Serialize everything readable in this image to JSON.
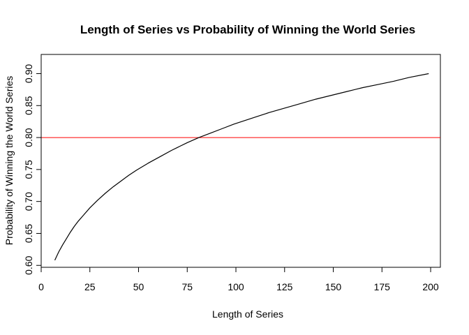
{
  "chart_data": {
    "type": "line",
    "title": "Length of Series vs Probability of Winning the World Series",
    "xlabel": "Length of Series",
    "ylabel": "Probability of Winning the World Series",
    "xlim": [
      0,
      205
    ],
    "ylim": [
      0.597,
      0.93
    ],
    "x_ticks": [
      0,
      25,
      50,
      75,
      100,
      125,
      150,
      175,
      200
    ],
    "y_ticks": [
      0.6,
      0.65,
      0.7,
      0.75,
      0.8,
      0.85,
      0.9
    ],
    "grid": false,
    "series": [
      {
        "color": "#000000",
        "x": [
          7,
          9,
          11,
          13,
          15,
          17,
          19,
          21,
          25,
          29,
          33,
          37,
          41,
          45,
          49,
          55,
          61,
          67,
          71,
          75,
          81,
          87,
          93,
          99,
          105,
          111,
          117,
          125,
          133,
          141,
          149,
          157,
          165,
          173,
          181,
          189,
          199
        ],
        "y": [
          0.608,
          0.621,
          0.632,
          0.642,
          0.652,
          0.661,
          0.669,
          0.676,
          0.69,
          0.702,
          0.713,
          0.723,
          0.732,
          0.741,
          0.749,
          0.76,
          0.77,
          0.78,
          0.786,
          0.792,
          0.8,
          0.807,
          0.814,
          0.821,
          0.827,
          0.833,
          0.839,
          0.846,
          0.853,
          0.86,
          0.866,
          0.872,
          0.878,
          0.883,
          0.888,
          0.894,
          0.9
        ]
      }
    ],
    "reference_lines": [
      {
        "orientation": "horizontal",
        "y": 0.8,
        "color": "#ff0000"
      }
    ]
  }
}
